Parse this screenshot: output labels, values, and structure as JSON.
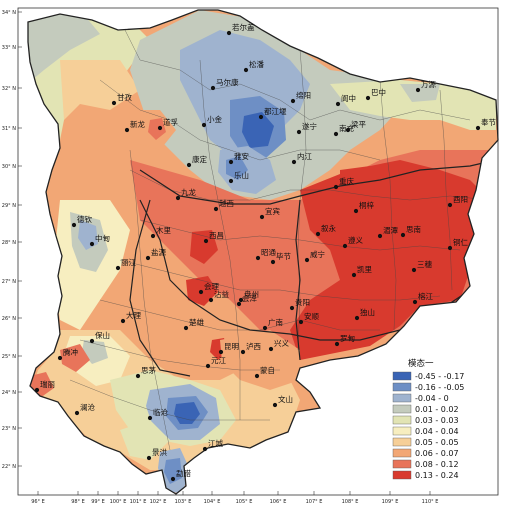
{
  "figure": {
    "legend_title": "模态一",
    "legend": [
      {
        "label": "-0.45 - -0.17",
        "color": "#3a64b5"
      },
      {
        "label": "-0.16 - -0.05",
        "color": "#6e8fc5"
      },
      {
        "label": "-0.04 - 0",
        "color": "#9fb3cf"
      },
      {
        "label": "0.01 - 0.02",
        "color": "#c4cbbd"
      },
      {
        "label": "0.03 - 0.03",
        "color": "#e2e4b4"
      },
      {
        "label": "0.04 - 0.04",
        "color": "#f7eec0"
      },
      {
        "label": "0.05 - 0.05",
        "color": "#f6cf98"
      },
      {
        "label": "0.06 - 0.07",
        "color": "#f2a775"
      },
      {
        "label": "0.08 - 0.12",
        "color": "#e8745a"
      },
      {
        "label": "0.13 - 0.24",
        "color": "#d83a2e"
      }
    ],
    "lon_ticks": [
      "96° E",
      "98° E",
      "99° E",
      "100° E",
      "101° E",
      "102° E",
      "103° E",
      "104° E",
      "105° E",
      "106° E",
      "107° E",
      "108° E",
      "109° E",
      "110° E"
    ],
    "lat_ticks": [
      "34° N",
      "33° N",
      "32° N",
      "31° N",
      "30° N",
      "29° N",
      "28° N",
      "27° N",
      "26° N",
      "25° N",
      "24° N",
      "23° N",
      "22° N"
    ],
    "cities": [
      {
        "name": "若尔盖"
      },
      {
        "name": "松潘"
      },
      {
        "name": "马尔康"
      },
      {
        "name": "甘孜"
      },
      {
        "name": "绵阳"
      },
      {
        "name": "巴中"
      },
      {
        "name": "万源"
      },
      {
        "name": "阆中"
      },
      {
        "name": "南充"
      },
      {
        "name": "梁平"
      },
      {
        "name": "奉节"
      },
      {
        "name": "都江堰"
      },
      {
        "name": "小金"
      },
      {
        "name": "新龙"
      },
      {
        "name": "道孚"
      },
      {
        "name": "康定"
      },
      {
        "name": "雅安"
      },
      {
        "name": "乐山"
      },
      {
        "name": "内江"
      },
      {
        "name": "遂宁"
      },
      {
        "name": "重庆"
      },
      {
        "name": "酉阳"
      },
      {
        "name": "九龙"
      },
      {
        "name": "越西"
      },
      {
        "name": "宜宾"
      },
      {
        "name": "叙永"
      },
      {
        "name": "桐梓"
      },
      {
        "name": "德钦"
      },
      {
        "name": "中甸"
      },
      {
        "name": "丽江"
      },
      {
        "name": "木里"
      },
      {
        "name": "西昌"
      },
      {
        "name": "昭通"
      },
      {
        "name": "威宁"
      },
      {
        "name": "毕节"
      },
      {
        "name": "遵义"
      },
      {
        "name": "湄潭"
      },
      {
        "name": "思南"
      },
      {
        "name": "铜仁"
      },
      {
        "name": "盐源"
      },
      {
        "name": "会理"
      },
      {
        "name": "会泽"
      },
      {
        "name": "贵阳"
      },
      {
        "name": "凯里"
      },
      {
        "name": "三穗"
      },
      {
        "name": "大理"
      },
      {
        "name": "楚雄"
      },
      {
        "name": "昆明"
      },
      {
        "name": "安顺"
      },
      {
        "name": "独山"
      },
      {
        "name": "榕江"
      },
      {
        "name": "腾冲"
      },
      {
        "name": "保山"
      },
      {
        "name": "临沧"
      },
      {
        "name": "澜沧"
      },
      {
        "name": "思茅"
      },
      {
        "name": "江城"
      },
      {
        "name": "景洪"
      },
      {
        "name": "勐腊"
      },
      {
        "name": "蒙自"
      },
      {
        "name": "文山"
      },
      {
        "name": "兴义"
      },
      {
        "name": "罗甸"
      },
      {
        "name": "瑞丽"
      },
      {
        "name": "元江"
      },
      {
        "name": "广南"
      },
      {
        "name": "盘州"
      },
      {
        "name": "沾益"
      },
      {
        "name": "泸西"
      }
    ]
  }
}
